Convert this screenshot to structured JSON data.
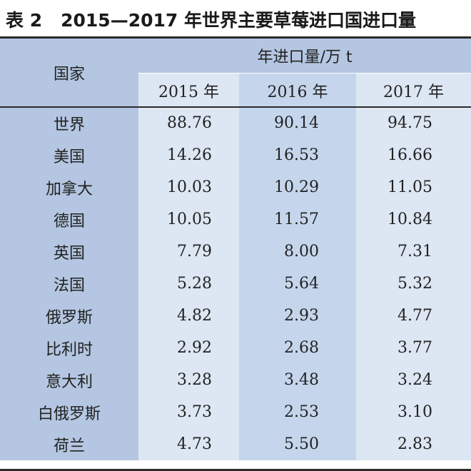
{
  "caption": {
    "label": "表 2",
    "title": "2015—2017 年世界主要草莓进口国进口量"
  },
  "table": {
    "country_header": "国家",
    "group_header": "年进口量/万 t",
    "year_headers": [
      "2015 年",
      "2016 年",
      "2017 年"
    ],
    "rows": [
      {
        "country": "世界",
        "values": [
          "88.76",
          "90.14",
          "94.75"
        ]
      },
      {
        "country": "美国",
        "values": [
          "14.26",
          "16.53",
          "16.66"
        ]
      },
      {
        "country": "加拿大",
        "values": [
          "10.03",
          "10.29",
          "11.05"
        ]
      },
      {
        "country": "德国",
        "values": [
          "10.05",
          "11.57",
          "10.84"
        ]
      },
      {
        "country": "英国",
        "values": [
          "7.79",
          "8.00",
          "7.31"
        ]
      },
      {
        "country": "法国",
        "values": [
          "5.28",
          "5.64",
          "5.32"
        ]
      },
      {
        "country": "俄罗斯",
        "values": [
          "4.82",
          "2.93",
          "4.77"
        ]
      },
      {
        "country": "比利时",
        "values": [
          "2.92",
          "2.68",
          "3.77"
        ]
      },
      {
        "country": "意大利",
        "values": [
          "3.28",
          "3.48",
          "3.24"
        ]
      },
      {
        "country": "白俄罗斯",
        "values": [
          "3.73",
          "2.53",
          "3.10"
        ]
      },
      {
        "country": "荷兰",
        "values": [
          "4.73",
          "5.50",
          "2.83"
        ]
      }
    ]
  },
  "colors": {
    "header_band": "#b4c6e1",
    "column_light": "#dde7f3",
    "column_mid": "#c5d6ec",
    "rule": "#2a2a2a"
  }
}
